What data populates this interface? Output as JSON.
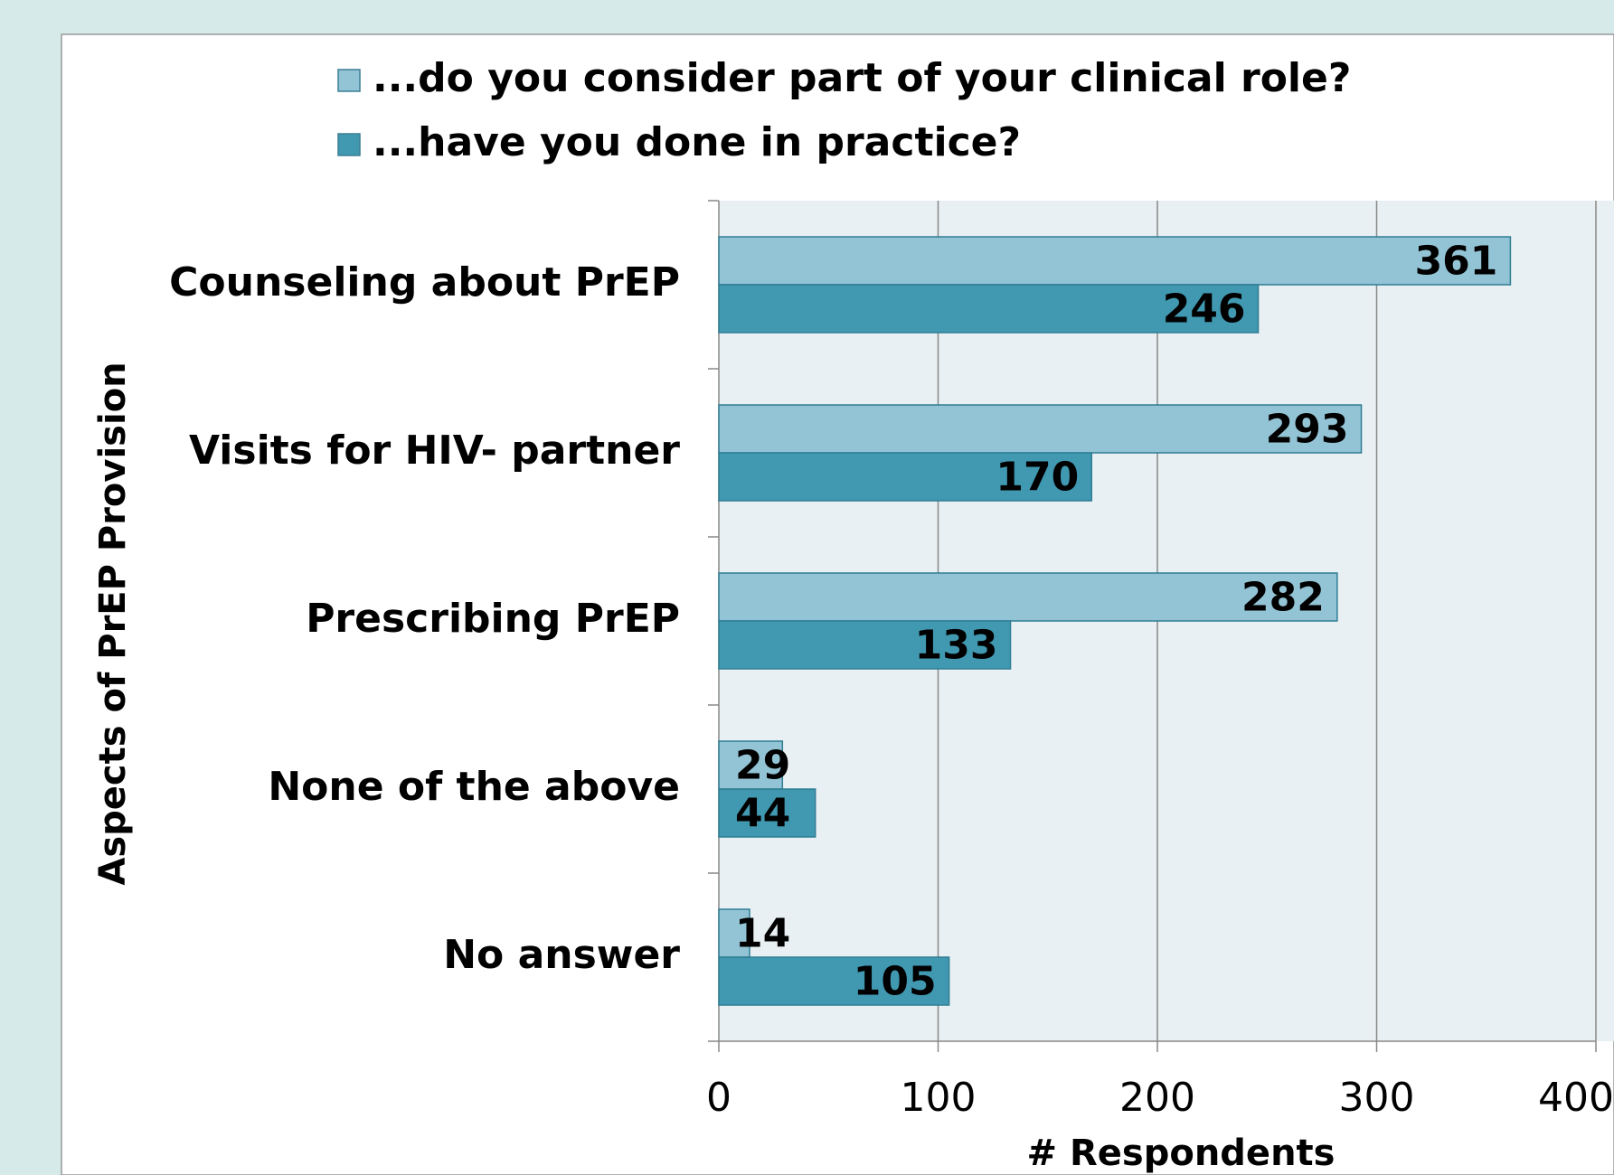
{
  "chart_data": {
    "type": "bar",
    "orientation": "horizontal",
    "categories": [
      "Counseling about PrEP",
      "Visits for HIV- partner",
      "Prescribing PrEP",
      "None of the above",
      "No answer"
    ],
    "series": [
      {
        "name": "...do you consider part of your clinical role?",
        "color": "#93c4d5",
        "values": [
          361,
          293,
          282,
          29,
          14
        ]
      },
      {
        "name": "...have you done in practice?",
        "color": "#4198b1",
        "values": [
          246,
          170,
          133,
          44,
          105
        ]
      }
    ],
    "xlim": [
      0,
      400
    ],
    "xticks": [
      0,
      100,
      200,
      300,
      400
    ],
    "x_label": "# Respondents",
    "y_label": "Aspects of PrEP Provision",
    "grid": true,
    "legend": "top"
  }
}
